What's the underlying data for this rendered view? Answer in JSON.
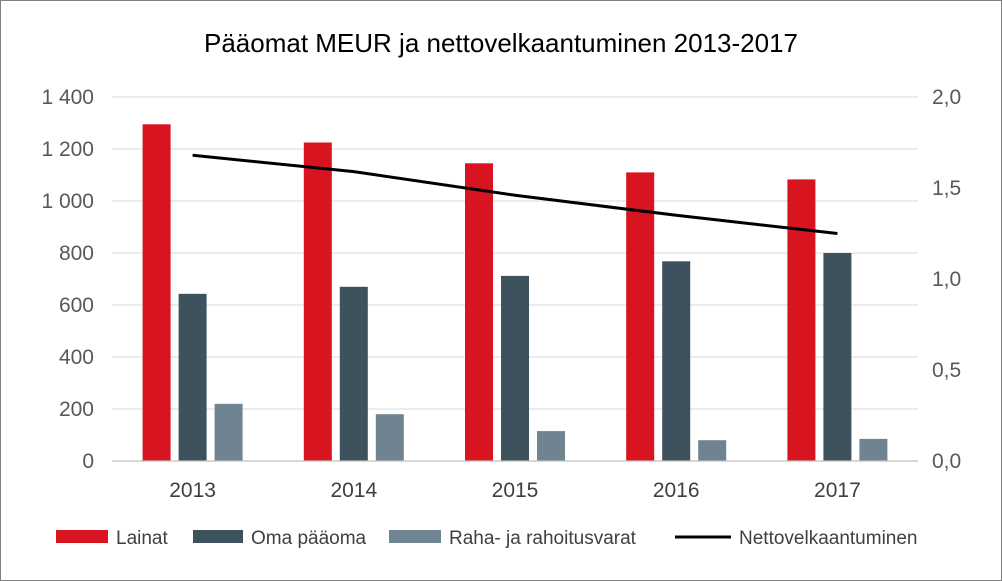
{
  "chart_data": {
    "type": "bar",
    "title": "Pääomat MEUR ja nettovelkaantuminen 2013-2017",
    "categories": [
      "2013",
      "2014",
      "2015",
      "2016",
      "2017"
    ],
    "series": [
      {
        "name": "Lainat",
        "type": "bar",
        "axis": "left",
        "color": "#d7141f",
        "values": [
          1295,
          1225,
          1145,
          1110,
          1083
        ]
      },
      {
        "name": "Oma pääoma",
        "type": "bar",
        "axis": "left",
        "color": "#3d525c",
        "values": [
          643,
          670,
          712,
          768,
          800
        ]
      },
      {
        "name": "Raha- ja rahoitusvarat",
        "type": "bar",
        "axis": "left",
        "color": "#6f8490",
        "values": [
          220,
          180,
          115,
          80,
          85
        ]
      },
      {
        "name": "Nettovelkaantuminen",
        "type": "line",
        "axis": "right",
        "color": "#000000",
        "values": [
          1.68,
          1.59,
          1.46,
          1.35,
          1.25
        ]
      }
    ],
    "y_left": {
      "min": 0,
      "max": 1400,
      "ticks": [
        0,
        200,
        400,
        600,
        800,
        1000,
        1200,
        1400
      ],
      "tick_labels": [
        "0",
        "200",
        "400",
        "600",
        "800",
        "1 000",
        "1 200",
        "1 400"
      ]
    },
    "y_right": {
      "min": 0,
      "max": 2.0,
      "ticks": [
        0,
        0.5,
        1.0,
        1.5,
        2.0
      ],
      "tick_labels": [
        "0,0",
        "0,5",
        "1,0",
        "1,5",
        "2,0"
      ]
    },
    "grid": true,
    "legend_position": "bottom"
  }
}
